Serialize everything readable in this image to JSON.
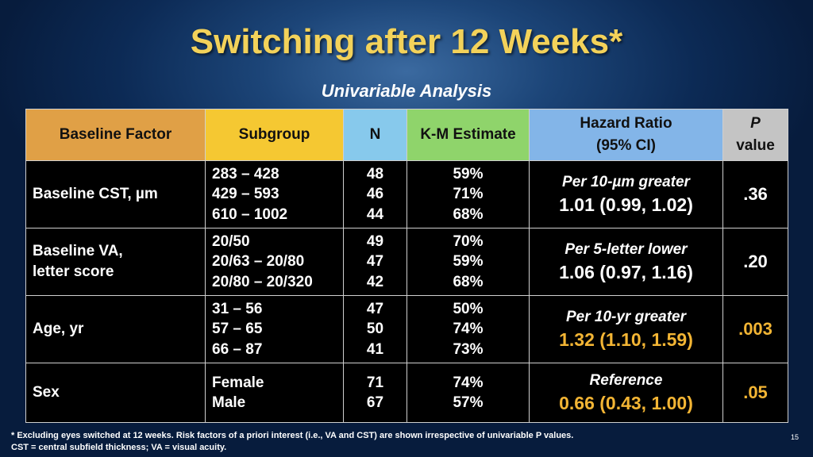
{
  "title": "Switching after 12 Weeks*",
  "subtitle": "Univariable Analysis",
  "headers": {
    "factor": "Baseline Factor",
    "subgroup": "Subgroup",
    "n": "N",
    "km": "K-M Estimate",
    "hr_line1": "Hazard Ratio",
    "hr_line2": "(95% CI)",
    "p_line1": "P",
    "p_line2": "value"
  },
  "header_colors": {
    "factor": "#e0a046",
    "subgroup": "#f5c832",
    "n": "#87c9ec",
    "km": "#8fd46b",
    "hr": "#83b5e8",
    "p": "#c4c4c4"
  },
  "highlight_color": "#f3b534",
  "rows": [
    {
      "factor_lines": [
        "Baseline CST, µm"
      ],
      "subgroups": [
        "283 – 428",
        "429 – 593",
        "610 – 1002"
      ],
      "n": [
        "48",
        "46",
        "44"
      ],
      "km": [
        "59%",
        "71%",
        "68%"
      ],
      "hr_label": "Per 10-µm greater",
      "hr_value": "1.01 (0.99, 1.02)",
      "p": ".36",
      "highlight": false
    },
    {
      "factor_lines": [
        "Baseline VA,",
        "letter score"
      ],
      "subgroups": [
        "20/50",
        "20/63 – 20/80",
        "20/80 – 20/320"
      ],
      "n": [
        "49",
        "47",
        "42"
      ],
      "km": [
        "70%",
        "59%",
        "68%"
      ],
      "hr_label": "Per 5-letter lower",
      "hr_value": "1.06 (0.97, 1.16)",
      "p": ".20",
      "highlight": false
    },
    {
      "factor_lines": [
        "Age, yr"
      ],
      "subgroups": [
        "31 – 56",
        "57 – 65",
        "66 – 87"
      ],
      "n": [
        "47",
        "50",
        "41"
      ],
      "km": [
        "50%",
        "74%",
        "73%"
      ],
      "hr_label": "Per 10-yr greater",
      "hr_value": "1.32 (1.10, 1.59)",
      "p": ".003",
      "highlight": true
    },
    {
      "factor_lines": [
        "Sex"
      ],
      "subgroups": [
        "Female",
        "Male"
      ],
      "n": [
        "71",
        "67"
      ],
      "km": [
        "74%",
        "57%"
      ],
      "hr_label": "Reference",
      "hr_value": "0.66 (0.43, 1.00)",
      "p": ".05",
      "highlight": true
    }
  ],
  "footnote_line1": "* Excluding eyes switched at 12 weeks. Risk factors of a priori interest (i.e., VA and CST) are shown irrespective of univariable P values.",
  "footnote_line2": "CST = central subfield thickness; VA = visual acuity.",
  "page_number": "15"
}
